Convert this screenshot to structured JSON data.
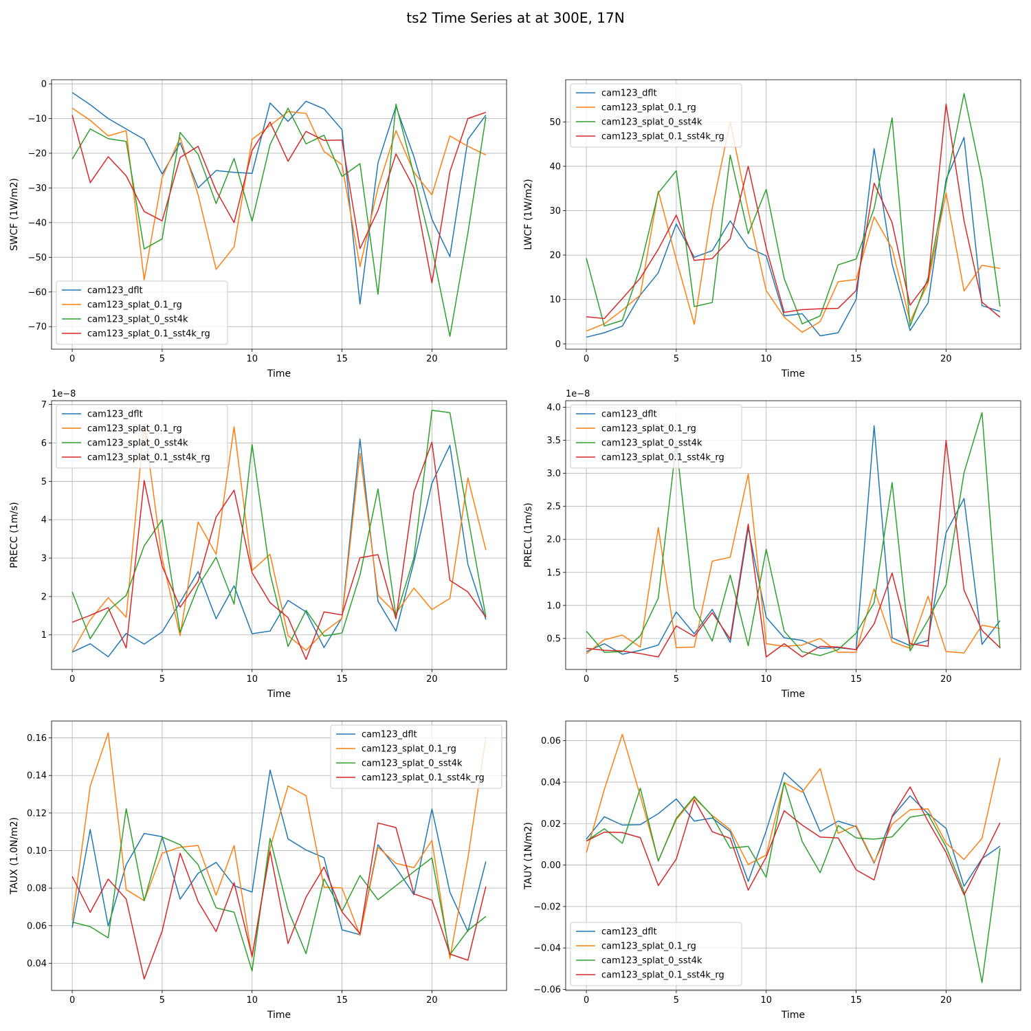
{
  "figure": {
    "title": "ts2 Time Series at at 300E, 17N",
    "colors": [
      "#1f77b4",
      "#ff7f0e",
      "#2ca02c",
      "#d62728"
    ],
    "series_names": [
      "cam123_dflt",
      "cam123_splat_0.1_rg",
      "cam123_splat_0_sst4k",
      "cam123_splat_0.1_sst4k_rg"
    ]
  },
  "chart_data": [
    {
      "type": "line",
      "title": "",
      "xlabel": "Time",
      "ylabel": "SWCF (1W/m2)",
      "offset_text": "",
      "xlim": [
        -1.15,
        24.15
      ],
      "ylim": [
        -76.5,
        1.2
      ],
      "xticks": [
        0,
        5,
        10,
        15,
        20
      ],
      "yticks": [
        -70,
        -60,
        -50,
        -40,
        -30,
        -20,
        -10,
        0
      ],
      "ytick_labels": [
        "−70",
        "−60",
        "−50",
        "−40",
        "−30",
        "−20",
        "−10",
        "0"
      ],
      "grid": true,
      "legend_position": "lower-left",
      "x": [
        0,
        1,
        2,
        3,
        4,
        5,
        6,
        7,
        8,
        9,
        10,
        11,
        12,
        13,
        14,
        15,
        16,
        17,
        18,
        19,
        20,
        21,
        22,
        23
      ],
      "series": [
        {
          "name": "cam123_dflt",
          "values": [
            -2.5,
            -6,
            -10,
            -13,
            -16,
            -26,
            -17,
            -30,
            -25,
            -25.5,
            -25.8,
            -5.5,
            -10.8,
            -5,
            -7.2,
            -13.2,
            -63.5,
            -22.8,
            -6.5,
            -21,
            -39,
            -49.8,
            -16,
            -9
          ]
        },
        {
          "name": "cam123_splat_0.1_rg",
          "values": [
            -7,
            -10.5,
            -15,
            -13.5,
            -56.5,
            -27,
            -15.5,
            -32,
            -53.5,
            -47,
            -16,
            -12,
            -8,
            -8.5,
            -19.5,
            -23.3,
            -52.7,
            -30,
            -13.5,
            -25.5,
            -32,
            -15,
            -18,
            -20.5
          ]
        },
        {
          "name": "cam123_splat_0_sst4k",
          "values": [
            -21.7,
            -13,
            -15.8,
            -16.6,
            -47.6,
            -44.7,
            -14,
            -20.3,
            -34.5,
            -21.5,
            -39.6,
            -17.5,
            -7,
            -17.3,
            -14.8,
            -26.7,
            -23,
            -60.7,
            -5.8,
            -26.3,
            -47.4,
            -72.8,
            -43,
            -9.5
          ]
        },
        {
          "name": "cam123_splat_0.1_sst4k_rg",
          "values": [
            -9,
            -28.5,
            -21,
            -26.5,
            -36.8,
            -39.5,
            -21.2,
            -18,
            -30.8,
            -40,
            -19.2,
            -11,
            -22.3,
            -13.7,
            -16.3,
            -16.2,
            -47.5,
            -36.5,
            -20.2,
            -30,
            -57.4,
            -25.3,
            -10,
            -8.2
          ]
        }
      ]
    },
    {
      "type": "line",
      "title": "",
      "xlabel": "Time",
      "ylabel": "LWCF (1W/m2)",
      "offset_text": "",
      "xlim": [
        -1.15,
        24.15
      ],
      "ylim": [
        -1.2,
        59.5
      ],
      "xticks": [
        0,
        5,
        10,
        15,
        20
      ],
      "yticks": [
        0,
        10,
        20,
        30,
        40,
        50
      ],
      "ytick_labels": [
        "0",
        "10",
        "20",
        "30",
        "40",
        "50"
      ],
      "grid": true,
      "legend_position": "upper-left",
      "x": [
        0,
        1,
        2,
        3,
        4,
        5,
        6,
        7,
        8,
        9,
        10,
        11,
        12,
        13,
        14,
        15,
        16,
        17,
        18,
        19,
        20,
        21,
        22,
        23
      ],
      "series": [
        {
          "name": "cam123_dflt",
          "values": [
            1.5,
            2.5,
            4,
            11,
            16,
            27,
            19.5,
            21,
            27.7,
            21.7,
            19.8,
            6.3,
            6.8,
            1.8,
            2.5,
            10,
            44,
            18,
            3,
            9.2,
            37,
            46.5,
            8.6,
            7.3
          ]
        },
        {
          "name": "cam123_splat_0.1_rg",
          "values": [
            2.9,
            4.5,
            7.6,
            11,
            34.4,
            19,
            4.4,
            30.6,
            50,
            30,
            12,
            6,
            2.6,
            5,
            14,
            14.5,
            28.6,
            21.5,
            5,
            13.7,
            34,
            11.9,
            17.7,
            17
          ]
        },
        {
          "name": "cam123_splat_0_sst4k",
          "values": [
            19.3,
            4,
            5.3,
            17.3,
            34,
            39,
            8.4,
            9.3,
            42.5,
            24.8,
            34.8,
            14.7,
            4.5,
            6.3,
            17.8,
            19.1,
            30.5,
            50.9,
            4,
            14.9,
            36,
            56.4,
            37,
            8.4
          ]
        },
        {
          "name": "cam123_splat_0.1_sst4k_rg",
          "values": [
            6.1,
            5.7,
            10.2,
            14.8,
            21.3,
            29,
            18.8,
            19.2,
            23.7,
            40,
            21.6,
            7.1,
            7.7,
            7.9,
            8,
            12,
            36.2,
            27.3,
            8.7,
            14.1,
            54,
            27.7,
            9.4,
            6
          ]
        }
      ]
    },
    {
      "type": "line",
      "title": "",
      "xlabel": "Time",
      "ylabel": "PRECC (1m/s)",
      "offset_text": "1e−8",
      "xlim": [
        -1.15,
        24.15
      ],
      "ylim": [
        0.1,
        7.1
      ],
      "xticks": [
        0,
        5,
        10,
        15,
        20
      ],
      "yticks": [
        1,
        2,
        3,
        4,
        5,
        6,
        7
      ],
      "ytick_labels": [
        "1",
        "2",
        "3",
        "4",
        "5",
        "6",
        "7"
      ],
      "grid": true,
      "legend_position": "upper-left",
      "x": [
        0,
        1,
        2,
        3,
        4,
        5,
        6,
        7,
        8,
        9,
        10,
        11,
        12,
        13,
        14,
        15,
        16,
        17,
        18,
        19,
        20,
        21,
        22,
        23
      ],
      "series": [
        {
          "name": "cam123_dflt",
          "values": [
            0.55,
            0.77,
            0.43,
            1.04,
            0.76,
            1.08,
            1.85,
            2.65,
            1.42,
            2.28,
            1.03,
            1.1,
            1.9,
            1.6,
            0.67,
            1.45,
            6.1,
            1.88,
            1.1,
            2.9,
            4.95,
            5.94,
            2.84,
            1.4
          ]
        },
        {
          "name": "cam123_splat_0.1_rg",
          "values": [
            0.56,
            1.39,
            1.97,
            1.46,
            6.49,
            2.99,
            0.98,
            3.94,
            3.1,
            6.42,
            2.68,
            3.1,
            0.98,
            0.6,
            1.08,
            1.43,
            5.73,
            2.03,
            1.56,
            2.22,
            1.66,
            1.95,
            5.09,
            3.21
          ]
        },
        {
          "name": "cam123_splat_0_sst4k",
          "values": [
            2.12,
            0.9,
            1.63,
            2.03,
            3.32,
            4,
            1.07,
            2.27,
            3.02,
            1.8,
            5.96,
            2.6,
            0.7,
            1.64,
            0.97,
            1.05,
            2.56,
            4.8,
            1.48,
            3.01,
            6.85,
            6.79,
            4.07,
            1.47
          ]
        },
        {
          "name": "cam123_splat_0.1_sst4k_rg",
          "values": [
            1.33,
            1.51,
            1.71,
            0.66,
            5.02,
            2.79,
            1.72,
            2.4,
            4.07,
            4.77,
            2.62,
            1.84,
            1.45,
            0.36,
            1.6,
            1.52,
            3.01,
            3.09,
            1.42,
            4.73,
            6.02,
            2.42,
            2.12,
            1.46
          ]
        }
      ]
    },
    {
      "type": "line",
      "title": "",
      "xlabel": "Time",
      "ylabel": "PRECL (1m/s)",
      "offset_text": "1e−8",
      "xlim": [
        -1.15,
        24.15
      ],
      "ylim": [
        0.03,
        4.1
      ],
      "xticks": [
        0,
        5,
        10,
        15,
        20
      ],
      "yticks": [
        0.5,
        1.0,
        1.5,
        2.0,
        2.5,
        3.0,
        3.5,
        4.0
      ],
      "ytick_labels": [
        "0.5",
        "1.0",
        "1.5",
        "2.0",
        "2.5",
        "3.0",
        "3.5",
        "4.0"
      ],
      "grid": true,
      "legend_position": "upper-left",
      "x": [
        0,
        1,
        2,
        3,
        4,
        5,
        6,
        7,
        8,
        9,
        10,
        11,
        12,
        13,
        14,
        15,
        16,
        17,
        18,
        19,
        20,
        21,
        22,
        23
      ],
      "series": [
        {
          "name": "cam123_dflt",
          "values": [
            0.3,
            0.42,
            0.26,
            0.32,
            0.4,
            0.9,
            0.57,
            0.94,
            0.44,
            2.17,
            0.82,
            0.51,
            0.47,
            0.35,
            0.36,
            0.33,
            3.72,
            0.51,
            0.39,
            0.47,
            2.1,
            2.62,
            0.41,
            0.77
          ]
        },
        {
          "name": "cam123_splat_0.1_rg",
          "values": [
            0.27,
            0.48,
            0.55,
            0.37,
            2.18,
            0.36,
            0.37,
            1.67,
            1.73,
            2.99,
            0.42,
            0.38,
            0.4,
            0.5,
            0.29,
            0.29,
            1.25,
            0.45,
            0.35,
            1.14,
            0.3,
            0.28,
            0.7,
            0.65
          ]
        },
        {
          "name": "cam123_splat_0_sst4k",
          "values": [
            0.61,
            0.29,
            0.3,
            0.54,
            1.11,
            3.46,
            0.96,
            0.46,
            1.46,
            0.39,
            1.85,
            0.61,
            0.3,
            0.24,
            0.33,
            0.58,
            1.04,
            2.86,
            0.31,
            0.78,
            1.31,
            3.01,
            3.92,
            0.35
          ]
        },
        {
          "name": "cam123_splat_0.1_sst4k_rg",
          "values": [
            0.35,
            0.32,
            0.31,
            0.27,
            0.22,
            0.69,
            0.53,
            0.89,
            0.49,
            2.23,
            0.22,
            0.42,
            0.22,
            0.38,
            0.37,
            0.33,
            0.72,
            1.49,
            0.42,
            0.38,
            3.5,
            1.23,
            0.62,
            0.36
          ]
        }
      ]
    },
    {
      "type": "line",
      "title": "",
      "xlabel": "Time",
      "ylabel": "TAUX (1.0N/m2)",
      "offset_text": "",
      "xlim": [
        -1.15,
        24.15
      ],
      "ylim": [
        0.0255,
        0.169
      ],
      "xticks": [
        0,
        5,
        10,
        15,
        20
      ],
      "yticks": [
        0.04,
        0.06,
        0.08,
        0.1,
        0.12,
        0.14,
        0.16
      ],
      "ytick_labels": [
        "0.04",
        "0.06",
        "0.08",
        "0.10",
        "0.12",
        "0.14",
        "0.16"
      ],
      "grid": true,
      "legend_position": "upper-right",
      "x": [
        0,
        1,
        2,
        3,
        4,
        5,
        6,
        7,
        8,
        9,
        10,
        11,
        12,
        13,
        14,
        15,
        16,
        17,
        18,
        19,
        20,
        21,
        22,
        23
      ],
      "series": [
        {
          "name": "cam123_dflt",
          "values": [
            0.059,
            0.1112,
            0.0598,
            0.0925,
            0.1091,
            0.1074,
            0.0741,
            0.0879,
            0.0937,
            0.0813,
            0.0779,
            0.1429,
            0.1062,
            0.1003,
            0.0962,
            0.0578,
            0.0552,
            0.1031,
            0.0909,
            0.0765,
            0.1221,
            0.0778,
            0.0569,
            0.0942
          ]
        },
        {
          "name": "cam123_splat_0.1_rg",
          "values": [
            0.0627,
            0.1343,
            0.1627,
            0.0792,
            0.0733,
            0.0986,
            0.1018,
            0.1027,
            0.0762,
            0.1027,
            0.0431,
            0.1014,
            0.1344,
            0.1292,
            0.0805,
            0.0801,
            0.0548,
            0.1018,
            0.0932,
            0.0909,
            0.1054,
            0.0425,
            0.0959,
            0.1605
          ]
        },
        {
          "name": "cam123_splat_0_sst4k",
          "values": [
            0.0619,
            0.0595,
            0.0535,
            0.1223,
            0.0733,
            0.1072,
            0.1031,
            0.0925,
            0.0695,
            0.0672,
            0.0359,
            0.1065,
            0.0683,
            0.0451,
            0.0849,
            0.0676,
            0.0867,
            0.0738,
            0.0813,
            0.0888,
            0.0961,
            0.0446,
            0.0574,
            0.0649
          ]
        },
        {
          "name": "cam123_splat_0.1_sst4k_rg",
          "values": [
            0.0862,
            0.0671,
            0.0848,
            0.0742,
            0.0316,
            0.0571,
            0.0986,
            0.0728,
            0.0569,
            0.0829,
            0.0437,
            0.0996,
            0.0505,
            0.0752,
            0.0912,
            0.0674,
            0.0557,
            0.1147,
            0.1122,
            0.0769,
            0.0736,
            0.0449,
            0.0416,
            0.0809
          ]
        }
      ]
    },
    {
      "type": "line",
      "title": "",
      "xlabel": "Time",
      "ylabel": "TAUY (1N/m2)",
      "offset_text": "",
      "xlim": [
        -1.15,
        24.15
      ],
      "ylim": [
        -0.0605,
        0.0695
      ],
      "xticks": [
        0,
        5,
        10,
        15,
        20
      ],
      "yticks": [
        -0.06,
        -0.04,
        -0.02,
        0.0,
        0.02,
        0.04,
        0.06
      ],
      "ytick_labels": [
        "−0.06",
        "−0.04",
        "−0.02",
        "0.00",
        "0.02",
        "0.04",
        "0.06"
      ],
      "grid": true,
      "legend_position": "lower-left",
      "x": [
        0,
        1,
        2,
        3,
        4,
        5,
        6,
        7,
        8,
        9,
        10,
        11,
        12,
        13,
        14,
        15,
        16,
        17,
        18,
        19,
        20,
        21,
        22,
        23
      ],
      "series": [
        {
          "name": "cam123_dflt",
          "values": [
            0.0125,
            0.0233,
            0.0193,
            0.0195,
            0.0248,
            0.0319,
            0.0212,
            0.0227,
            0.0162,
            -0.0079,
            0.0165,
            0.0446,
            0.0366,
            0.0162,
            0.0212,
            0.0185,
            0.0009,
            0.0232,
            0.0334,
            0.0248,
            0.0177,
            -0.0102,
            0.0031,
            0.0091
          ]
        },
        {
          "name": "cam123_splat_0.1_rg",
          "values": [
            0.0059,
            0.0365,
            0.0631,
            0.0333,
            0.0021,
            0.0219,
            0.0325,
            0.0239,
            0.0171,
            0.0003,
            0.0048,
            0.0398,
            0.0352,
            0.0465,
            0.0153,
            0.0191,
            0.0013,
            0.0197,
            0.0267,
            0.0271,
            0.0106,
            0.0027,
            0.0129,
            0.0517
          ]
        },
        {
          "name": "cam123_splat_0_sst4k",
          "values": [
            0.0116,
            0.0175,
            0.0105,
            0.0371,
            0.0019,
            0.0226,
            0.0331,
            0.0236,
            0.0082,
            0.009,
            -0.0059,
            0.0398,
            0.0114,
            -0.0037,
            0.0191,
            0.0131,
            0.0125,
            0.0136,
            0.0231,
            0.0245,
            0.0088,
            -0.0129,
            -0.0567,
            0.0081
          ]
        },
        {
          "name": "cam123_splat_0.1_sst4k_rg",
          "values": [
            0.0116,
            0.0159,
            0.0157,
            0.0132,
            -0.0099,
            0.0029,
            0.0315,
            0.0161,
            0.0129,
            -0.0121,
            0.0039,
            0.0262,
            0.0193,
            0.0135,
            0.0131,
            -0.0023,
            -0.0072,
            0.0236,
            0.0377,
            0.0211,
            0.0061,
            -0.0144,
            0.0028,
            0.0204
          ]
        }
      ]
    }
  ]
}
